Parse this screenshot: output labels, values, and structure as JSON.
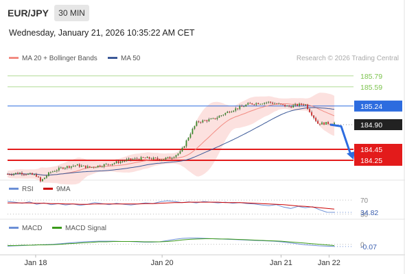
{
  "header": {
    "symbol": "EUR/JPY",
    "timeframe": "30 MIN",
    "datetime": "Wednesday, January 21, 2026 10:35:22 AM CET",
    "credit": "Research © 2026 Trading Central"
  },
  "legend": {
    "price": [
      {
        "label": "MA 20 + Bollinger Bands",
        "color": "#f28b82"
      },
      {
        "label": "MA 50",
        "color": "#3b5998"
      }
    ],
    "rsi": [
      {
        "label": "RSI",
        "color": "#6b8fd6"
      },
      {
        "label": "9MA",
        "color": "#cc0000"
      }
    ],
    "macd": [
      {
        "label": "MACD",
        "color": "#6b8fd6"
      },
      {
        "label": "MACD Signal",
        "color": "#3a9a1a"
      }
    ]
  },
  "chart_data": [
    {
      "type": "candlestick",
      "ylim": [
        183.9,
        185.95
      ],
      "x_labels": [
        "Jan 18",
        "Jan 20",
        "Jan 21",
        "Jan 22"
      ],
      "close_path": [
        {
          "t": 0,
          "v": 184.0
        },
        {
          "t": 0.04,
          "v": 184.02
        },
        {
          "t": 0.09,
          "v": 183.97
        },
        {
          "t": 0.1,
          "v": 183.86
        },
        {
          "t": 0.13,
          "v": 184.03
        },
        {
          "t": 0.17,
          "v": 184.12
        },
        {
          "t": 0.21,
          "v": 184.16
        },
        {
          "t": 0.25,
          "v": 184.12
        },
        {
          "t": 0.31,
          "v": 184.18
        },
        {
          "t": 0.37,
          "v": 184.26
        },
        {
          "t": 0.42,
          "v": 184.29
        },
        {
          "t": 0.47,
          "v": 184.27
        },
        {
          "t": 0.5,
          "v": 184.3
        },
        {
          "t": 0.53,
          "v": 184.4
        },
        {
          "t": 0.56,
          "v": 184.75
        },
        {
          "t": 0.58,
          "v": 184.95
        },
        {
          "t": 0.63,
          "v": 185.0
        },
        {
          "t": 0.68,
          "v": 185.15
        },
        {
          "t": 0.74,
          "v": 185.28
        },
        {
          "t": 0.8,
          "v": 185.31
        },
        {
          "t": 0.86,
          "v": 185.23
        },
        {
          "t": 0.91,
          "v": 185.28
        },
        {
          "t": 0.93,
          "v": 185.1
        },
        {
          "t": 0.95,
          "v": 184.92
        },
        {
          "t": 1,
          "v": 184.93
        }
      ],
      "levels": [
        {
          "value": 185.79,
          "label": "185.79",
          "color": "#7cc34e",
          "style": "text"
        },
        {
          "value": 185.59,
          "label": "185.59",
          "color": "#7cc34e",
          "style": "text"
        },
        {
          "value": 185.24,
          "label": "185.24",
          "color": "#2d6cdf",
          "style": "box"
        },
        {
          "value": 184.9,
          "label": "184.90",
          "color": "#222222",
          "style": "box"
        },
        {
          "value": 184.45,
          "label": "184.45",
          "color": "#e31b1b",
          "style": "box"
        },
        {
          "value": 184.25,
          "label": "184.25",
          "color": "#e31b1b",
          "style": "box"
        }
      ],
      "forecast": {
        "from": 184.9,
        "to": 184.3,
        "color": "#2d6cdf"
      }
    },
    {
      "type": "line",
      "title": "RSI",
      "ylim": [
        25,
        80
      ],
      "levels": [
        {
          "value": 70,
          "label": "70"
        },
        {
          "value": 30,
          "label": "30"
        }
      ],
      "last_value": "34.82",
      "series": [
        {
          "name": "RSI",
          "values": [
            66,
            64,
            61,
            65,
            58,
            62,
            57,
            60,
            56,
            59,
            55,
            58,
            63,
            60,
            57,
            61,
            58,
            56,
            59,
            62,
            60,
            65,
            68,
            66,
            63,
            65,
            62,
            66,
            64,
            62,
            64,
            61,
            63,
            60,
            59,
            56,
            54,
            57,
            50,
            46,
            52,
            48,
            51,
            42,
            35,
            34.82
          ]
        },
        {
          "name": "9MA",
          "values": [
            62,
            62,
            62,
            62,
            61,
            61,
            60,
            60,
            59,
            59,
            58,
            58,
            59,
            59,
            59,
            59,
            59,
            59,
            59,
            60,
            60,
            61,
            62,
            63,
            63,
            64,
            64,
            64,
            64,
            64,
            63,
            63,
            63,
            62,
            61,
            60,
            59,
            58,
            57,
            55,
            53,
            52,
            50,
            48,
            46,
            44
          ]
        }
      ]
    },
    {
      "type": "line",
      "title": "MACD",
      "ylim": [
        -0.25,
        0.3
      ],
      "levels": [
        {
          "value": 0,
          "label": "0"
        }
      ],
      "last_value": "-0.07",
      "series": [
        {
          "name": "MACD",
          "values": [
            -0.06,
            -0.05,
            -0.04,
            -0.03,
            -0.02,
            -0.01,
            0.0,
            0.02,
            0.04,
            0.06,
            0.08,
            0.09,
            0.1,
            0.1,
            0.1,
            0.09,
            0.09,
            0.08,
            0.07,
            0.07,
            0.08,
            0.12,
            0.16,
            0.19,
            0.2,
            0.2,
            0.19,
            0.18,
            0.17,
            0.16,
            0.15,
            0.14,
            0.13,
            0.12,
            0.11,
            0.1,
            0.08,
            0.05,
            0.02,
            -0.01,
            -0.03,
            -0.05,
            -0.06,
            -0.07
          ]
        },
        {
          "name": "MACD Signal",
          "values": [
            -0.04,
            -0.04,
            -0.03,
            -0.03,
            -0.02,
            -0.02,
            -0.01,
            0.0,
            0.02,
            0.03,
            0.05,
            0.06,
            0.08,
            0.08,
            0.09,
            0.09,
            0.09,
            0.09,
            0.08,
            0.08,
            0.08,
            0.09,
            0.11,
            0.14,
            0.16,
            0.17,
            0.18,
            0.18,
            0.17,
            0.17,
            0.16,
            0.15,
            0.14,
            0.13,
            0.12,
            0.11,
            0.1,
            0.08,
            0.06,
            0.04,
            0.02,
            0.0,
            -0.02,
            -0.04
          ]
        }
      ]
    }
  ]
}
